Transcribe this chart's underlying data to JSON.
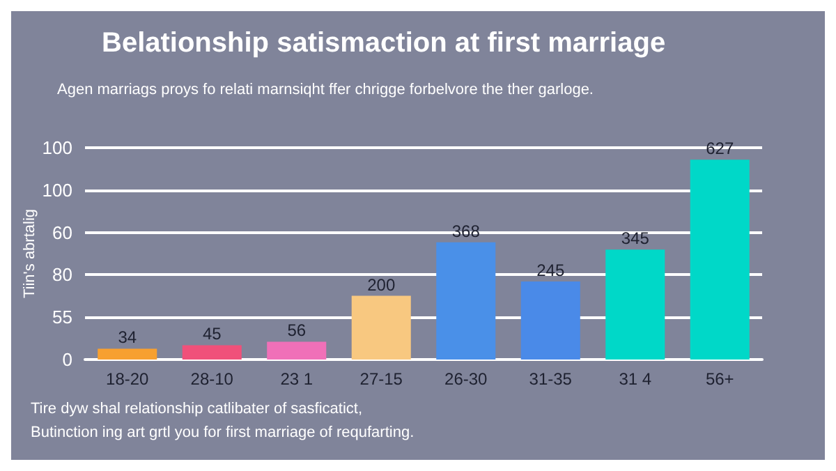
{
  "chart_data": {
    "type": "bar",
    "title": "Belationship satismaction at first marriage",
    "subtitle": "Agen marriags proys fo relati marnsiqht ffer chrigge forbelvore the ther garloge.",
    "ylabel": "Tiin's abrtalig",
    "categories": [
      "18-20",
      "28-10",
      "23 1",
      "27-15",
      "26-30",
      "31-35",
      "31 4",
      "56+"
    ],
    "values": [
      34,
      45,
      56,
      200,
      368,
      245,
      345,
      627
    ],
    "colors": [
      "#f7a030",
      "#f0507a",
      "#f070b8",
      "#f8c880",
      "#4a90e8",
      "#4a8ae8",
      "#00d8c8",
      "#00d8c8"
    ],
    "data_labels": true,
    "grid": "y",
    "annotations": [
      "100",
      "100",
      "60",
      "80",
      "55",
      "0",
      "Tire dyw shal relationship catlibater of sasficatict,",
      "Butinction ing art grtl you for first marriage of requfarting."
    ]
  }
}
